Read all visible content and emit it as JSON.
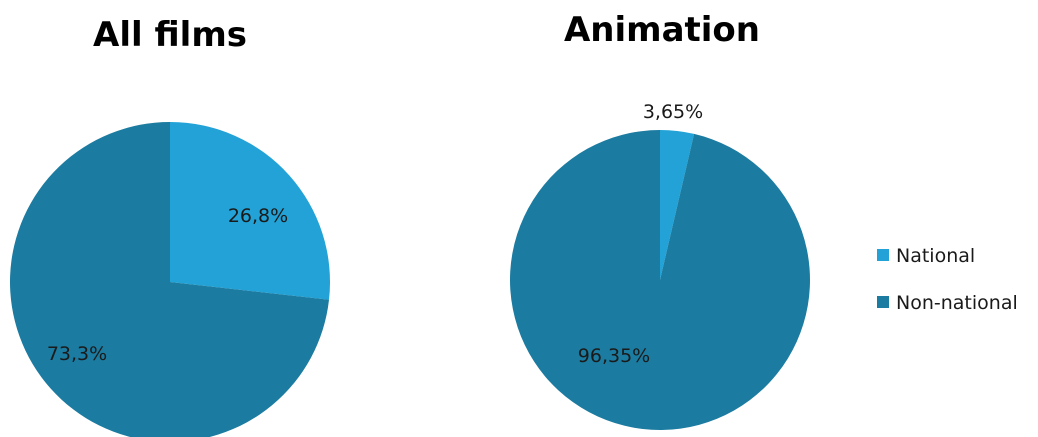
{
  "chart_data": [
    {
      "type": "pie",
      "title": "All films",
      "categories": [
        "National",
        "Non-national"
      ],
      "values": [
        26.8,
        73.3
      ],
      "labels": [
        "26,8%",
        "73,3%"
      ],
      "colors": [
        "#22a2d6",
        "#1b7ba0"
      ],
      "start_angle_deg": 0,
      "direction": "clockwise"
    },
    {
      "type": "pie",
      "title": "Animation",
      "categories": [
        "National",
        "Non-national"
      ],
      "values": [
        3.65,
        96.35
      ],
      "labels": [
        "3,65%",
        "96,35%"
      ],
      "colors": [
        "#22a2d6",
        "#1b7ba0"
      ],
      "start_angle_deg": 0,
      "direction": "clockwise"
    }
  ],
  "legend": {
    "placement": "right",
    "items": [
      {
        "label": "National",
        "color": "#22a2d6"
      },
      {
        "label": "Non-national",
        "color": "#1b7ba0"
      }
    ]
  }
}
